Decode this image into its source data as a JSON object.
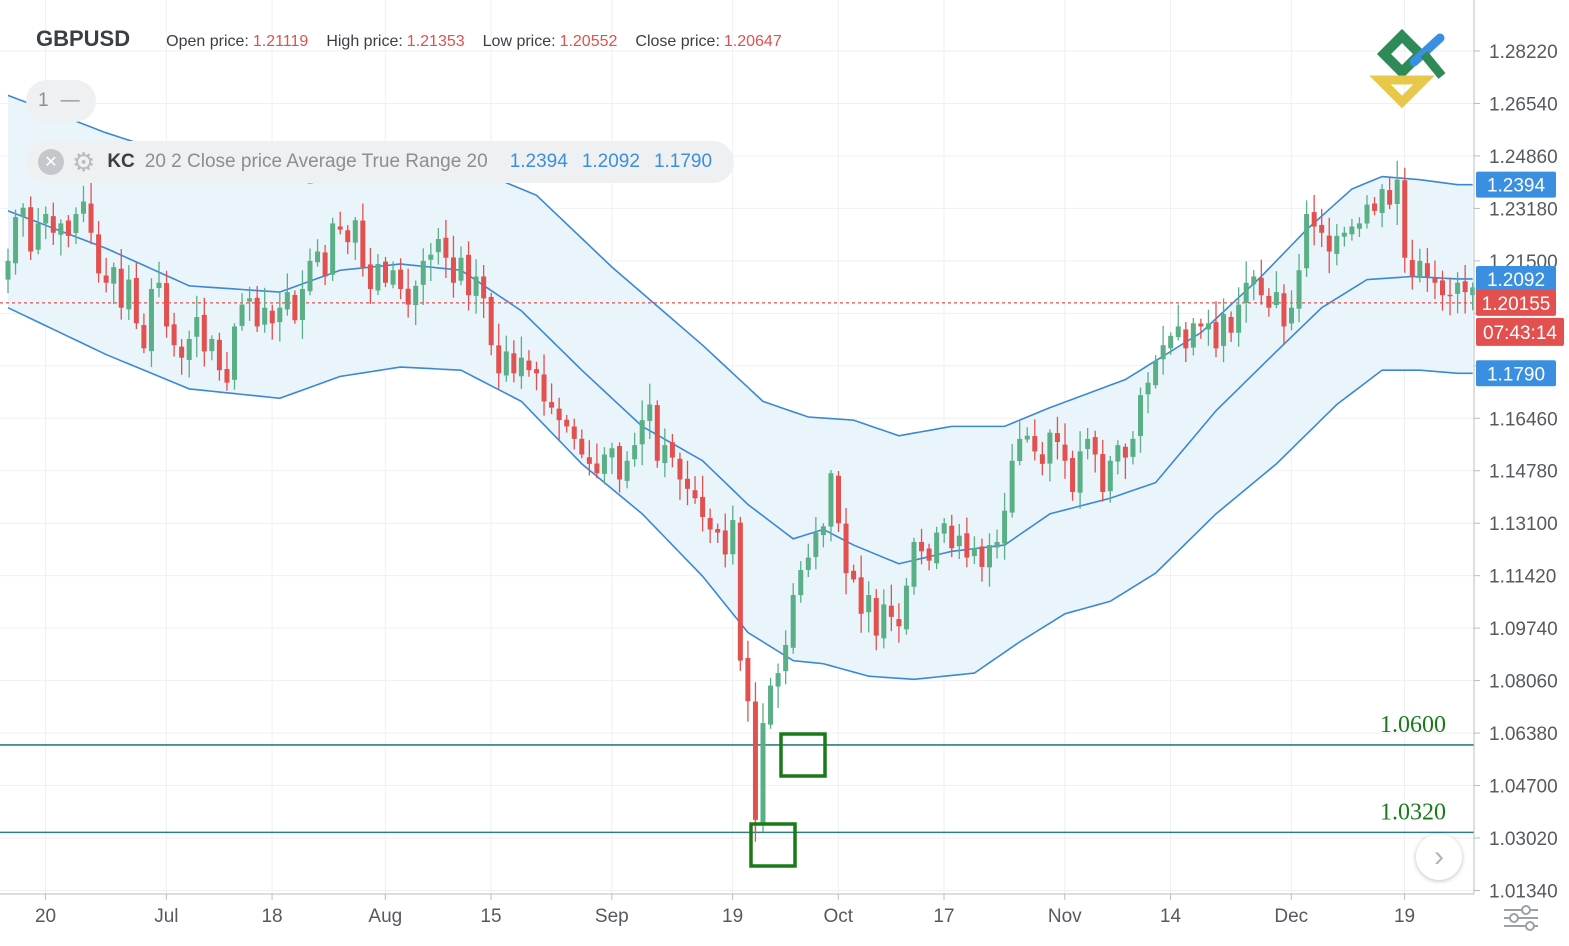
{
  "header": {
    "symbol": "GBPUSD",
    "open_label": "Open price:",
    "open_value": "1.21119",
    "high_label": "High price:",
    "high_value": "1.21353",
    "low_label": "Low price:",
    "low_value": "1.20552",
    "close_label": "Close price:",
    "close_value": "1.20647"
  },
  "pane_control": {
    "number": "1",
    "collapse": "—"
  },
  "indicator": {
    "name": "KC",
    "params": "20 2 Close price Average True Range 20",
    "upper": "1.2394",
    "middle": "1.2092",
    "lower": "1.1790",
    "icons": [
      "close-icon",
      "gear-icon"
    ]
  },
  "price_tags": {
    "upper": "1.2394",
    "middle": "1.2092",
    "lower": "1.1790",
    "current": "1.20155",
    "countdown": "07:43:14"
  },
  "colors": {
    "up": "#5aaf86",
    "down": "#e2504f",
    "band_line": "#3b88d4",
    "band_fill": "#eaf4fb",
    "level_line": "#2f7d88",
    "marker": "#1a7a1a",
    "level_text": "#1a7a1a",
    "axis_text": "#555a60",
    "grid": "#eef0f2",
    "tag_blue": "#3b8fe0",
    "tag_red": "#e2504f"
  },
  "icons": {
    "logo": "logo-icon",
    "next": "chevron-right-icon",
    "settings": "settings-sliders-icon"
  },
  "chart_data": {
    "type": "candlestick",
    "symbol": "GBPUSD",
    "y_ticks": [
      1.2822,
      1.2654,
      1.2486,
      1.2318,
      1.215,
      1.1982,
      1.1814,
      1.1646,
      1.1478,
      1.131,
      1.1142,
      1.0974,
      1.0806,
      1.0638,
      1.047,
      1.0302,
      1.0134
    ],
    "y_tick_labels": [
      "1.28220",
      "1.26540",
      "1.24860",
      "1.23180",
      "1.21500",
      "",
      "",
      "1.16460",
      "1.14780",
      "1.13100",
      "1.11420",
      "1.09740",
      "1.08060",
      "1.06380",
      "1.04700",
      "1.03020",
      "1.01340"
    ],
    "ylim": [
      1.0115,
      1.2952
    ],
    "x_labels": [
      "20",
      "Jul",
      "18",
      "Aug",
      "15",
      "Sep",
      "19",
      "Oct",
      "17",
      "Nov",
      "14",
      "Dec",
      "19"
    ],
    "x_label_bar_index": [
      1,
      17,
      31,
      46,
      60,
      76,
      92,
      106,
      120,
      136,
      150,
      166,
      181
    ],
    "current_price": 1.20155,
    "levels": [
      {
        "label": "1.0600",
        "value": 1.06
      },
      {
        "label": "1.0320",
        "value": 1.032
      }
    ],
    "markers": [
      {
        "bar": 102,
        "price": 1.056
      },
      {
        "bar": 101,
        "price": 1.029
      }
    ],
    "keltner": {
      "params": "20 2 Close price Average True Range 20",
      "upper_last": 1.2394,
      "middle_last": 1.2092,
      "lower_last": 1.179,
      "upper_anchors": [
        [
          0,
          1.268
        ],
        [
          13,
          1.256
        ],
        [
          27,
          1.245
        ],
        [
          40,
          1.24
        ],
        [
          52,
          1.244
        ],
        [
          60,
          1.246
        ],
        [
          70,
          1.236
        ],
        [
          80,
          1.213
        ],
        [
          92,
          1.188
        ],
        [
          100,
          1.17
        ],
        [
          106,
          1.165
        ],
        [
          112,
          1.164
        ],
        [
          118,
          1.159
        ],
        [
          125,
          1.162
        ],
        [
          132,
          1.162
        ],
        [
          138,
          1.168
        ],
        [
          148,
          1.177
        ],
        [
          158,
          1.192
        ],
        [
          166,
          1.21
        ],
        [
          172,
          1.225
        ],
        [
          178,
          1.238
        ],
        [
          182,
          1.242
        ],
        [
          187,
          1.241
        ],
        [
          192,
          1.2394
        ]
      ],
      "middle_anchors": [
        [
          0,
          1.231
        ],
        [
          13,
          1.219
        ],
        [
          24,
          1.207
        ],
        [
          36,
          1.205
        ],
        [
          44,
          1.212
        ],
        [
          52,
          1.214
        ],
        [
          60,
          1.212
        ],
        [
          68,
          1.199
        ],
        [
          76,
          1.18
        ],
        [
          84,
          1.162
        ],
        [
          92,
          1.151
        ],
        [
          98,
          1.137
        ],
        [
          104,
          1.126
        ],
        [
          108,
          1.129
        ],
        [
          112,
          1.124
        ],
        [
          118,
          1.118
        ],
        [
          125,
          1.122
        ],
        [
          132,
          1.124
        ],
        [
          138,
          1.134
        ],
        [
          146,
          1.139
        ],
        [
          152,
          1.144
        ],
        [
          160,
          1.167
        ],
        [
          168,
          1.186
        ],
        [
          174,
          1.2
        ],
        [
          180,
          1.209
        ],
        [
          186,
          1.21
        ],
        [
          192,
          1.2092
        ]
      ],
      "lower_anchors": [
        [
          0,
          1.2
        ],
        [
          13,
          1.185
        ],
        [
          24,
          1.174
        ],
        [
          36,
          1.171
        ],
        [
          44,
          1.178
        ],
        [
          52,
          1.181
        ],
        [
          60,
          1.18
        ],
        [
          68,
          1.17
        ],
        [
          76,
          1.15
        ],
        [
          84,
          1.134
        ],
        [
          92,
          1.114
        ],
        [
          98,
          1.096
        ],
        [
          104,
          1.087
        ],
        [
          108,
          1.086
        ],
        [
          114,
          1.082
        ],
        [
          120,
          1.081
        ],
        [
          128,
          1.083
        ],
        [
          134,
          1.093
        ],
        [
          140,
          1.102
        ],
        [
          146,
          1.106
        ],
        [
          152,
          1.115
        ],
        [
          160,
          1.134
        ],
        [
          168,
          1.15
        ],
        [
          176,
          1.169
        ],
        [
          182,
          1.18
        ],
        [
          187,
          1.18
        ],
        [
          192,
          1.179
        ]
      ]
    },
    "candle_closes": [
      1.215,
      1.229,
      1.232,
      1.218,
      1.227,
      1.23,
      1.224,
      1.227,
      1.223,
      1.23,
      1.234,
      1.224,
      1.211,
      1.208,
      1.213,
      1.2,
      1.209,
      1.195,
      1.187,
      1.206,
      1.208,
      1.194,
      1.188,
      1.184,
      1.19,
      1.197,
      1.186,
      1.19,
      1.18,
      1.176,
      1.194,
      1.201,
      1.203,
      1.194,
      1.2,
      1.195,
      1.2,
      1.205,
      1.196,
      1.206,
      1.215,
      1.218,
      1.21,
      1.227,
      1.225,
      1.221,
      1.228,
      1.213,
      1.206,
      1.214,
      1.208,
      1.212,
      1.206,
      1.201,
      1.207,
      1.215,
      1.217,
      1.222,
      1.216,
      1.208,
      1.216,
      1.204,
      1.21,
      1.203,
      1.188,
      1.179,
      1.186,
      1.179,
      1.184,
      1.18,
      1.179,
      1.17,
      1.168,
      1.164,
      1.162,
      1.158,
      1.153,
      1.15,
      1.147,
      1.153,
      1.155,
      1.145,
      1.151,
      1.156,
      1.164,
      1.169,
      1.151,
      1.156,
      1.152,
      1.145,
      1.142,
      1.139,
      1.133,
      1.129,
      1.128,
      1.121,
      1.132,
      1.087,
      1.074,
      1.036,
      1.067,
      1.079,
      1.083,
      1.092,
      1.108,
      1.116,
      1.12,
      1.128,
      1.13,
      1.147,
      1.131,
      1.115,
      1.113,
      1.102,
      1.108,
      1.095,
      1.105,
      1.101,
      1.098,
      1.111,
      1.125,
      1.122,
      1.119,
      1.128,
      1.131,
      1.123,
      1.127,
      1.12,
      1.123,
      1.117,
      1.124,
      1.125,
      1.135,
      1.151,
      1.158,
      1.159,
      1.154,
      1.15,
      1.16,
      1.157,
      1.151,
      1.141,
      1.154,
      1.158,
      1.153,
      1.141,
      1.151,
      1.156,
      1.152,
      1.158,
      1.172,
      1.176,
      1.183,
      1.188,
      1.191,
      1.194,
      1.187,
      1.195,
      1.194,
      1.195,
      1.187,
      1.198,
      1.192,
      1.201,
      1.208,
      1.21,
      1.204,
      1.2,
      1.205,
      1.194,
      1.2,
      1.212,
      1.23,
      1.226,
      1.224,
      1.218,
      1.223,
      1.224,
      1.226,
      1.227,
      1.233,
      1.231,
      1.238,
      1.233,
      1.241,
      1.216,
      1.21,
      1.215,
      1.21,
      1.208,
      1.204,
      1.204,
      1.208,
      1.205,
      1.2065
    ]
  }
}
